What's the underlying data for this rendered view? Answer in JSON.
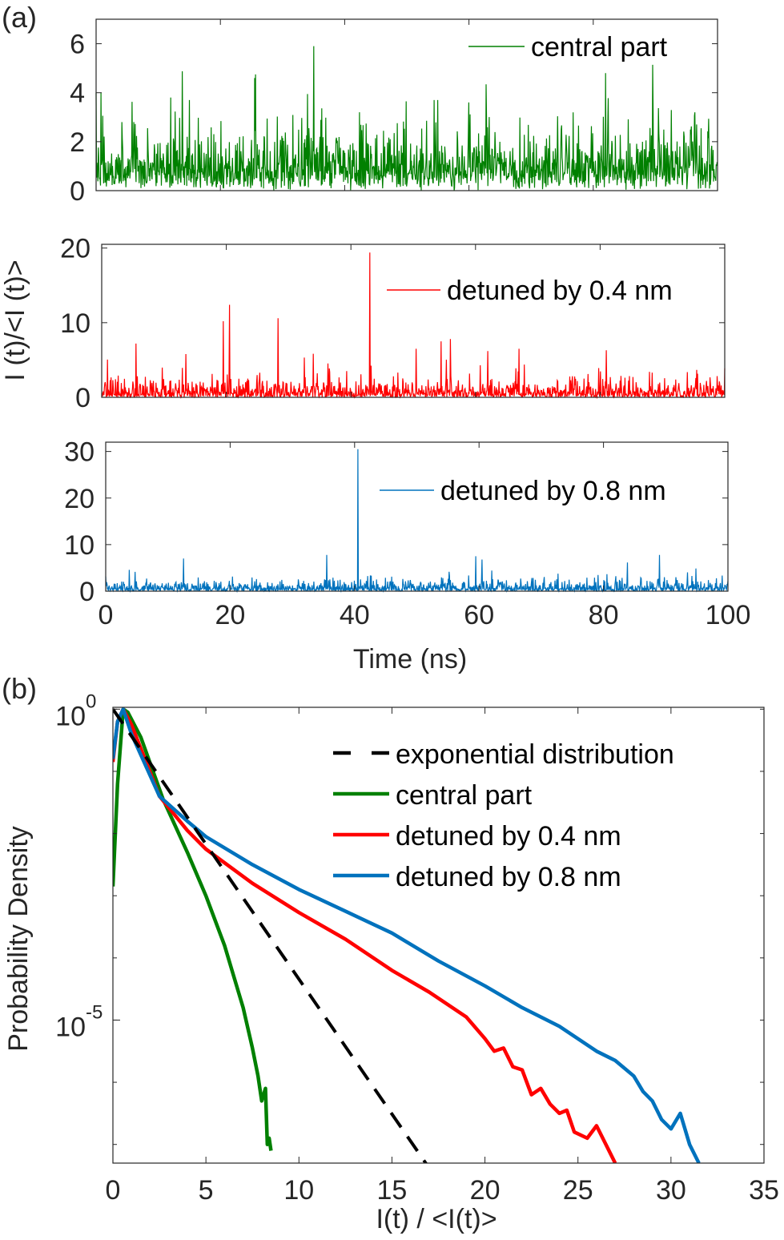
{
  "chart_data": [
    {
      "panel_label": "(a)",
      "type": "line",
      "ylabel": "I (t)/<I (t)>",
      "xlabel": "Time (ns)",
      "xlim": [
        0,
        100
      ],
      "xticks": [
        "0",
        "20",
        "40",
        "60",
        "80",
        "100"
      ],
      "subplots": [
        {
          "name": "central part",
          "color": "#008000",
          "ylim": [
            0,
            7
          ],
          "yticks": [
            "0",
            "2",
            "4",
            "6"
          ],
          "baseline_mean": 1.0,
          "noise_kind": "gamma2",
          "spikes": [
            [
              0.8,
              4.0
            ],
            [
              25.5,
              4.6
            ],
            [
              35,
              5.9
            ],
            [
              82,
              4.8
            ],
            [
              60,
              3.6
            ],
            [
              55,
              3.7
            ],
            [
              15,
              3.7
            ],
            [
              12,
              3.8
            ]
          ]
        },
        {
          "name": "detuned by 0.4 nm",
          "color": "#ff0000",
          "ylim": [
            0,
            20.5
          ],
          "yticks": [
            "0",
            "10",
            "20"
          ],
          "baseline_mean": 1.0,
          "noise_kind": "exp",
          "spikes": [
            [
              5.5,
              7.2
            ],
            [
              13.5,
              5.8
            ],
            [
              19.5,
              10.2
            ],
            [
              20.5,
              12.4
            ],
            [
              28.3,
              10.6
            ],
            [
              43,
              19.4
            ],
            [
              50.5,
              6.5
            ],
            [
              54.5,
              7.5
            ],
            [
              56,
              7.8
            ],
            [
              62,
              6.2
            ],
            [
              67,
              6.5
            ],
            [
              81,
              6.3
            ]
          ]
        },
        {
          "name": "detuned by 0.8 nm",
          "color": "#0072bd",
          "ylim": [
            0,
            32
          ],
          "yticks": [
            "0",
            "10",
            "20",
            "30"
          ],
          "baseline_mean": 1.0,
          "noise_kind": "exp",
          "spikes": [
            [
              12.5,
              7.0
            ],
            [
              35.5,
              7.8
            ],
            [
              40.5,
              30.5
            ],
            [
              59.5,
              7.5
            ],
            [
              89,
              7.8
            ],
            [
              60.5,
              6.8
            ]
          ]
        }
      ]
    },
    {
      "panel_label": "(b)",
      "type": "line",
      "ylabel": "Probability Density",
      "xlabel": "I(t) / <I(t)>",
      "xlim": [
        0,
        35
      ],
      "yscale": "log",
      "ylim_log10": [
        -7.3,
        0.03
      ],
      "xticks": [
        "0",
        "5",
        "10",
        "15",
        "20",
        "25",
        "30",
        "35"
      ],
      "yticks": [
        {
          "base": "10",
          "exp": "0"
        },
        {
          "base": "10",
          "exp": "-5"
        }
      ],
      "legend_placement": "top-right",
      "series": [
        {
          "name": "exponential distribution",
          "color": "#000000",
          "style": "dashed",
          "points_log10": [
            [
              0,
              0
            ],
            [
              17,
              -7.38
            ]
          ]
        },
        {
          "name": "central part",
          "color": "#008000",
          "style": "solid",
          "points_log10": [
            [
              0,
              -2.85
            ],
            [
              0.25,
              -1.2
            ],
            [
              0.55,
              0
            ],
            [
              0.8,
              -0.05
            ],
            [
              1.5,
              -0.45
            ],
            [
              2.7,
              -1.45
            ],
            [
              4,
              -2.3
            ],
            [
              5,
              -3.0
            ],
            [
              6,
              -3.8
            ],
            [
              6.5,
              -4.3
            ],
            [
              7,
              -4.8
            ],
            [
              7.5,
              -5.45
            ],
            [
              7.8,
              -5.9
            ],
            [
              8.0,
              -6.3
            ],
            [
              8.2,
              -6.1
            ],
            [
              8.3,
              -7.0
            ],
            [
              8.4,
              -6.9
            ],
            [
              8.5,
              -7.1
            ]
          ]
        },
        {
          "name": "detuned by 0.4 nm",
          "color": "#ff0000",
          "style": "solid",
          "points_log10": [
            [
              0,
              -0.85
            ],
            [
              0.25,
              -0.2
            ],
            [
              0.55,
              0
            ],
            [
              1,
              -0.25
            ],
            [
              2.5,
              -1.4
            ],
            [
              4,
              -1.95
            ],
            [
              5,
              -2.25
            ],
            [
              7.5,
              -2.8
            ],
            [
              10,
              -3.27
            ],
            [
              12.5,
              -3.7
            ],
            [
              15,
              -4.2
            ],
            [
              17,
              -4.55
            ],
            [
              19,
              -4.95
            ],
            [
              20,
              -5.3
            ],
            [
              20.5,
              -5.5
            ],
            [
              21,
              -5.45
            ],
            [
              21.5,
              -5.75
            ],
            [
              22,
              -5.8
            ],
            [
              22.5,
              -6.2
            ],
            [
              23,
              -6.1
            ],
            [
              23.5,
              -6.35
            ],
            [
              24,
              -6.5
            ],
            [
              24.4,
              -6.45
            ],
            [
              24.8,
              -6.8
            ],
            [
              25.5,
              -6.9
            ],
            [
              26,
              -6.7
            ],
            [
              26.5,
              -7.0
            ],
            [
              27,
              -7.3
            ]
          ]
        },
        {
          "name": "detuned by 0.8 nm",
          "color": "#0072bd",
          "style": "solid",
          "points_log10": [
            [
              0,
              -0.8
            ],
            [
              0.25,
              -0.2
            ],
            [
              0.55,
              0
            ],
            [
              1,
              -0.4
            ],
            [
              2.5,
              -1.4
            ],
            [
              4,
              -1.8
            ],
            [
              5,
              -2.05
            ],
            [
              7.5,
              -2.5
            ],
            [
              10,
              -2.9
            ],
            [
              12.5,
              -3.25
            ],
            [
              15,
              -3.6
            ],
            [
              17.5,
              -4.05
            ],
            [
              20,
              -4.45
            ],
            [
              22,
              -4.8
            ],
            [
              24,
              -5.1
            ],
            [
              25,
              -5.3
            ],
            [
              26,
              -5.5
            ],
            [
              27,
              -5.65
            ],
            [
              28,
              -5.9
            ],
            [
              28.5,
              -6.15
            ],
            [
              29,
              -6.3
            ],
            [
              29.5,
              -6.6
            ],
            [
              30,
              -6.75
            ],
            [
              30.5,
              -6.5
            ],
            [
              31,
              -7.0
            ],
            [
              31.5,
              -7.3
            ]
          ]
        }
      ]
    }
  ]
}
